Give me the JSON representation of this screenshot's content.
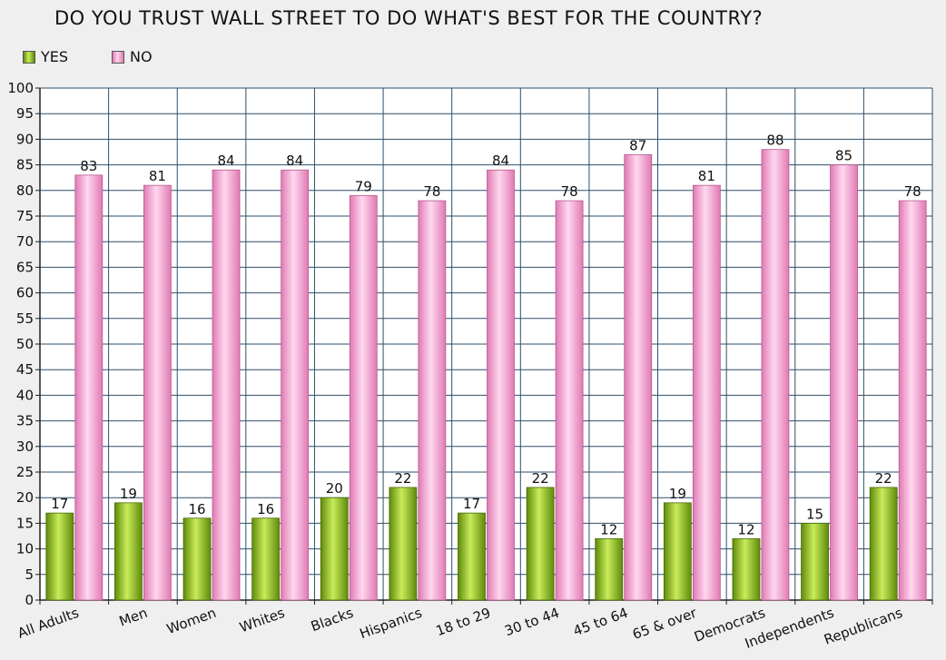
{
  "chart_data": {
    "type": "bar",
    "title": "DO YOU TRUST WALL STREET TO DO WHAT'S BEST FOR THE COUNTRY?",
    "xlabel": "",
    "ylabel": "",
    "ylim": [
      0,
      100
    ],
    "ytick_step": 5,
    "grid": true,
    "legend_position": "top-left",
    "categories": [
      "All Adults",
      "Men",
      "Women",
      "Whites",
      "Blacks",
      "Hispanics",
      "18 to 29",
      "30 to 44",
      "45 to 64",
      "65 & over",
      "Democrats",
      "Independents",
      "Republicans"
    ],
    "series": [
      {
        "name": "YES",
        "color": "#8fc21a",
        "values": [
          17,
          19,
          16,
          16,
          20,
          22,
          17,
          22,
          12,
          19,
          12,
          15,
          22
        ]
      },
      {
        "name": "NO",
        "color": "#f2a0cc",
        "values": [
          83,
          81,
          84,
          84,
          79,
          78,
          84,
          78,
          87,
          81,
          88,
          85,
          78
        ]
      }
    ]
  }
}
